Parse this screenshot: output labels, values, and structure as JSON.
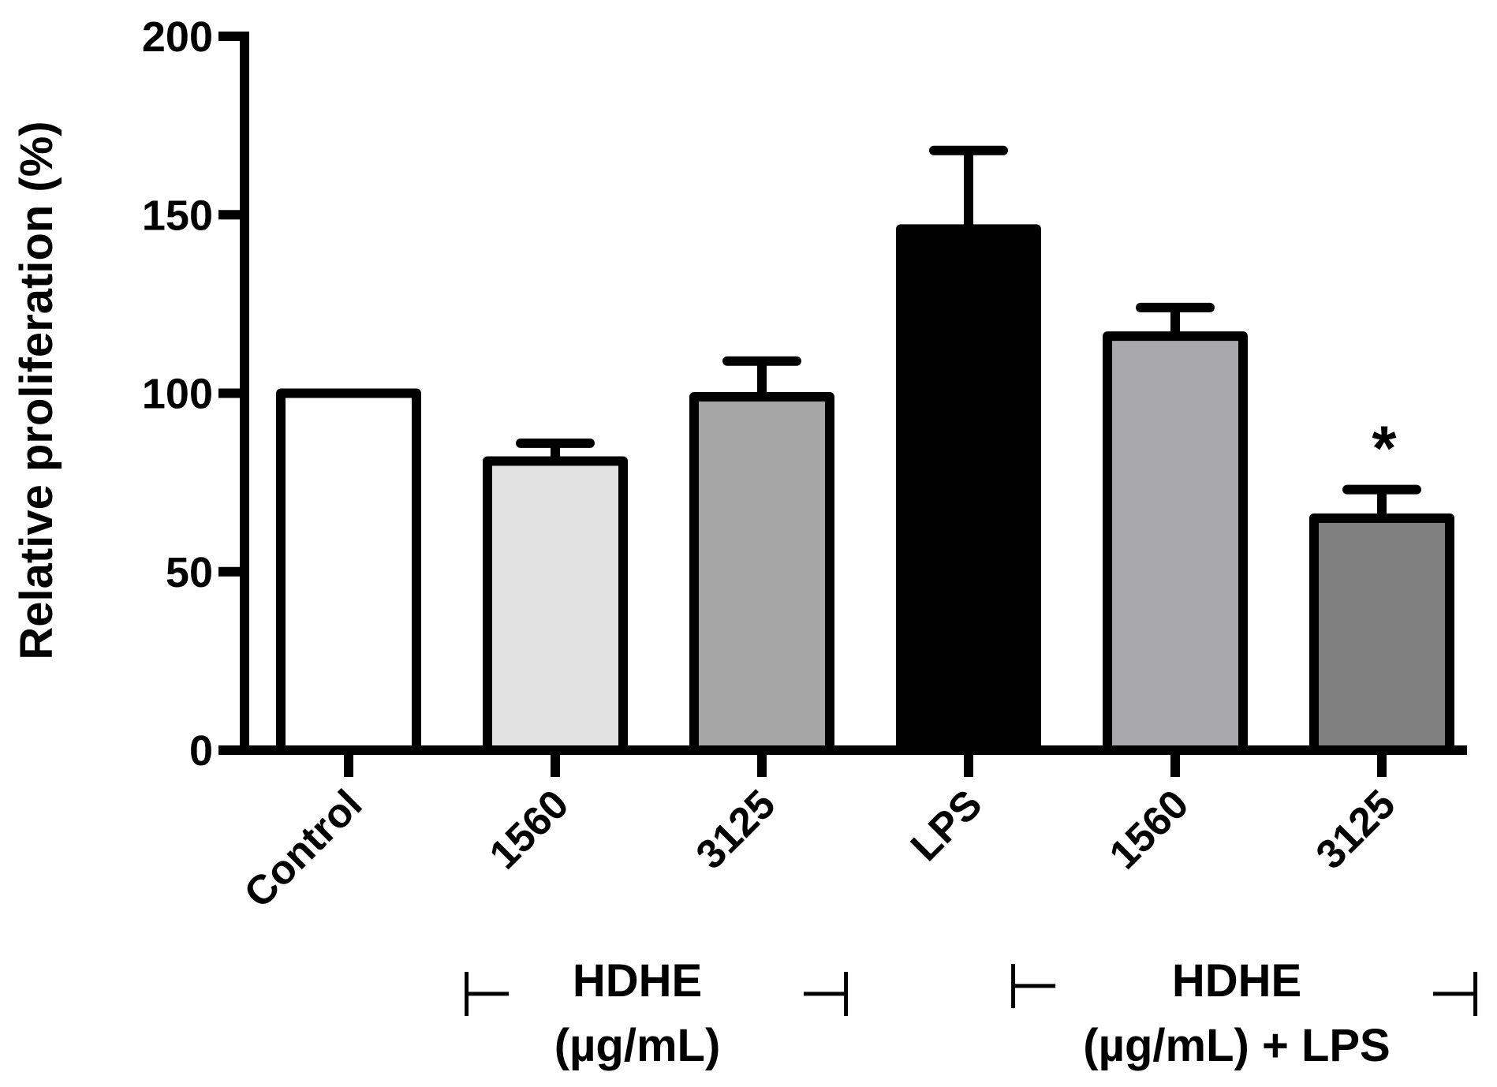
{
  "chart_data": {
    "type": "bar",
    "categories": [
      "Control",
      "1560",
      "3125",
      "LPS",
      "1560",
      "3125"
    ],
    "values": [
      100,
      81,
      99,
      146,
      116,
      65
    ],
    "errors": [
      0,
      5,
      10,
      22,
      8,
      8
    ],
    "fills": [
      "#ffffff",
      "#e1e1e1",
      "#a6a6a6",
      "#000000",
      "#a8a8ad",
      "#808080"
    ],
    "ylabel": "Relative proliferation (%)",
    "ylim": [
      0,
      200
    ],
    "yticks": [
      "0",
      "50",
      "100",
      "150",
      "200"
    ],
    "ytick_values": [
      0,
      50,
      100,
      150,
      200
    ],
    "significance": [
      {
        "category_index": 5,
        "label": "*"
      }
    ],
    "groups": [
      {
        "line1": "HDHE",
        "line2": "(µg/mL)",
        "left_bracket": "⊢",
        "right_bracket": "⊣"
      },
      {
        "line1": "HDHE",
        "line2": "(µg/mL) + LPS",
        "left_bracket": "⊢",
        "right_bracket": "⊣"
      }
    ],
    "grid": false,
    "legend": "none"
  }
}
